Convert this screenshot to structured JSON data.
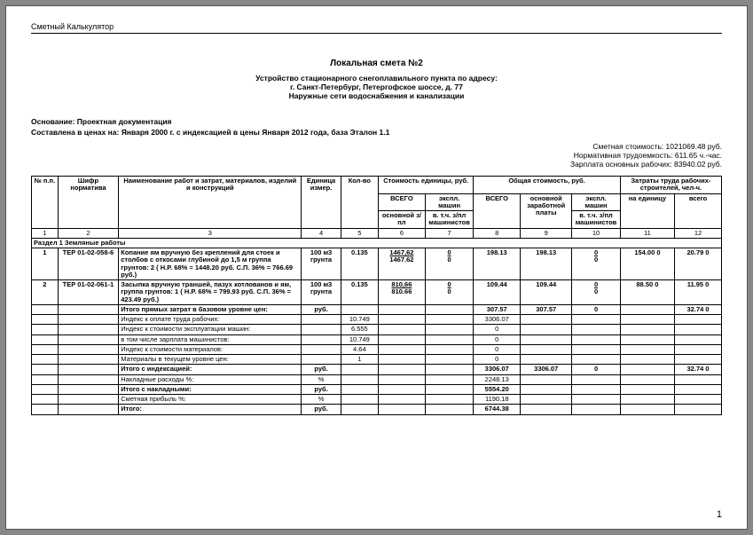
{
  "appTitle": "Сметный Калькулятор",
  "docTitle": "Локальная смета №2",
  "subtitle1": "Устройство стационарного снегоплавильного пункта по адресу:",
  "subtitle2": "г. Санкт-Петербург, Петергофское шоссе, д. 77",
  "subtitle3": "Наружные сети водоснабжения и канализации",
  "basis": "Основание: Проектная документация",
  "composed": "Составлена в ценах на: Января 2000 г. с индексацией в цены Января 2012 года, база Эталон 1.1",
  "meta1": "Сметная стоимость: 1021069.48 руб.",
  "meta2": "Нормативная трудоемкость: 611.65 ч.-час.",
  "meta3": "Зарплата основных рабочих: 83940.02 руб.",
  "header": {
    "h1": "№ п.п.",
    "h2": "Шифр норматива",
    "h3": "Наименование работ и затрат, материалов, изделий и конструкций",
    "h4": "Единица измер.",
    "h5": "Кол-во",
    "g1": "Стоимость единицы, руб.",
    "g1a": "ВСЕГО",
    "g1b": "экспл. машин",
    "g1aa": "основной з/пл",
    "g1bb": "в. т.ч. з/пл машинистов",
    "g2": "Общая стоимость, руб.",
    "g2a": "ВСЕГО",
    "g2b": "основной заработной платы",
    "g2c": "экспл. машин",
    "g2cc": "в. т.ч. з/пл машинистов",
    "g3": "Затраты труда рабочих-строителей, чел-ч.",
    "g3a": "на единицу",
    "g3b": "всего",
    "nums": [
      "1",
      "2",
      "3",
      "4",
      "5",
      "6",
      "7",
      "8",
      "9",
      "10",
      "11",
      "12"
    ]
  },
  "section": "Раздел 1 Земляные работы",
  "rows": [
    {
      "n": "1",
      "code": "ТЕР 01-02-058-6",
      "desc": "Копание ям вручную без креплений для стоек и столбов с откосами глубиной до 1,5 м группа грунтов: 2 ( Н.Р. 68% = 1448.20 руб. С.П. 36% = 766.69 руб.)",
      "unit": "100 м3 грунта",
      "qty": "0.135",
      "uc_top_u": "1467,62",
      "uc_bot": "1467.62",
      "uc2_top_u": "0",
      "uc2_bot": "0",
      "tc1": "198.13",
      "tc2": "198.13",
      "tc3_top_u": "0",
      "tc3_bot": "0",
      "lb1": "154.00 0",
      "lb2": "20.79 0"
    },
    {
      "n": "2",
      "code": "ТЕР 01-02-061-1",
      "desc": "Засыпка вручную траншей, пазух котлованов и ям, группа грунтов: 1 ( Н.Р. 68% = 799.93 руб. С.П. 36% = 423.49 руб.)",
      "unit": "100 м3 грунта",
      "qty": "0.135",
      "uc_top_u": "810,66",
      "uc_bot": "810.66",
      "uc2_top_u": "0",
      "uc2_bot": "0",
      "tc1": "109.44",
      "tc2": "109.44",
      "tc3_top_u": "0",
      "tc3_bot": "0",
      "lb1": "88.50 0",
      "lb2": "11.95 0"
    }
  ],
  "summary": [
    {
      "desc": "Итого прямых затрат в базовом уровне цен:",
      "unit": "руб.",
      "qty": "",
      "uc1": "",
      "uc2": "",
      "tc1": "307.57",
      "tc2": "307.57",
      "tc3": "0",
      "lb1": "",
      "lb2": "32.74 0",
      "bold": true
    },
    {
      "desc": "Индекс к оплате труда рабочих:",
      "unit": "",
      "qty": "10.749",
      "uc1": "",
      "uc2": "",
      "tc1": "3306.07",
      "tc2": "",
      "tc3": "",
      "lb1": "",
      "lb2": ""
    },
    {
      "desc": "Индекс к стоимости эксплуатации машин:",
      "unit": "",
      "qty": "6.555",
      "uc1": "",
      "uc2": "",
      "tc1": "0",
      "tc2": "",
      "tc3": "",
      "lb1": "",
      "lb2": ""
    },
    {
      "desc": "в том числе зарплата машинистов:",
      "unit": "",
      "qty": "10.749",
      "uc1": "",
      "uc2": "",
      "tc1": "0",
      "tc2": "",
      "tc3": "",
      "lb1": "",
      "lb2": ""
    },
    {
      "desc": "Индекс к стоимости материалов:",
      "unit": "",
      "qty": "4.64",
      "uc1": "",
      "uc2": "",
      "tc1": "0",
      "tc2": "",
      "tc3": "",
      "lb1": "",
      "lb2": ""
    },
    {
      "desc": "Материалы в текущем уровне цен:",
      "unit": "",
      "qty": "1",
      "uc1": "",
      "uc2": "",
      "tc1": "0",
      "tc2": "",
      "tc3": "",
      "lb1": "",
      "lb2": ""
    },
    {
      "desc": "Итого с индексацией:",
      "unit": "руб.",
      "qty": "",
      "uc1": "",
      "uc2": "",
      "tc1": "3306.07",
      "tc2": "3306.07",
      "tc3": "0",
      "lb1": "",
      "lb2": "32.74 0",
      "bold": true
    },
    {
      "desc": "Накладные расходы %:",
      "unit": "%",
      "qty": "",
      "uc1": "",
      "uc2": "",
      "tc1": "2248.13",
      "tc2": "",
      "tc3": "",
      "lb1": "",
      "lb2": ""
    },
    {
      "desc": "Итого с накладными:",
      "unit": "руб.",
      "qty": "",
      "uc1": "",
      "uc2": "",
      "tc1": "5554.20",
      "tc2": "",
      "tc3": "",
      "lb1": "",
      "lb2": "",
      "bold": true
    },
    {
      "desc": "Сметная прибыль %:",
      "unit": "%",
      "qty": "",
      "uc1": "",
      "uc2": "",
      "tc1": "1190.18",
      "tc2": "",
      "tc3": "",
      "lb1": "",
      "lb2": ""
    },
    {
      "desc": "Итого:",
      "unit": "руб.",
      "qty": "",
      "uc1": "",
      "uc2": "",
      "tc1": "6744.38",
      "tc2": "",
      "tc3": "",
      "lb1": "",
      "lb2": "",
      "bold": true
    }
  ],
  "pageNum": "1"
}
